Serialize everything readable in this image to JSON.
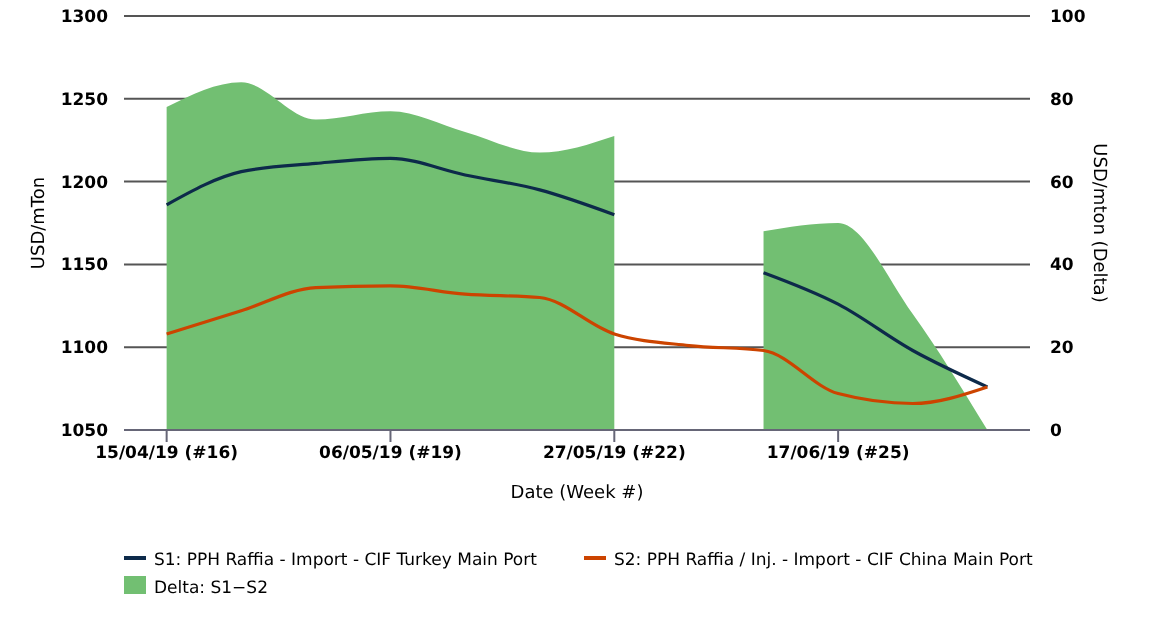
{
  "chart_data": {
    "type": "line",
    "xlabel": "Date (Week #)",
    "ylabel": "USD/mTon",
    "y2label": "USD/mton (Delta)",
    "x": [
      "2019-04-15",
      "2019-04-22",
      "2019-04-29",
      "2019-05-06",
      "2019-05-13",
      "2019-05-20",
      "2019-05-27",
      "2019-06-03",
      "2019-06-10",
      "2019-06-17",
      "2019-06-24",
      "2019-07-01"
    ],
    "series": [
      {
        "name": "Delta: S1−S2",
        "type": "area",
        "axis": "y2",
        "color": "#72bf72",
        "values": [
          78,
          84,
          75,
          77,
          72,
          67,
          71,
          null,
          48,
          50,
          28,
          0
        ]
      },
      {
        "name": "S1: PPH Raffia - Import - CIF Turkey Main Port",
        "color": "#0d2a4a",
        "values": [
          1186,
          1206,
          1211,
          1214,
          1204,
          1195,
          1180,
          null,
          1145,
          1126,
          1098,
          1076
        ]
      },
      {
        "name": "S2: PPH Raffia / Inj. - Import - CIF China Main Port",
        "color": "#cc4400",
        "values": [
          1108,
          1122,
          1136,
          1137,
          1132,
          1130,
          1108,
          1101,
          1098,
          1072,
          1066,
          1076
        ]
      }
    ],
    "xlim": [
      "2019-04-11",
      "2019-07-05"
    ],
    "xticks": [
      {
        "value": "2019-04-15",
        "label": "15/04/19 (#16)"
      },
      {
        "value": "2019-05-06",
        "label": "06/05/19 (#19)"
      },
      {
        "value": "2019-05-27",
        "label": "27/05/19 (#22)"
      },
      {
        "value": "2019-06-17",
        "label": "17/06/19 (#25)"
      }
    ],
    "ylim": [
      1050,
      1300
    ],
    "yticks": [
      1050,
      1100,
      1150,
      1200,
      1250,
      1300
    ],
    "y2lim": [
      0,
      100
    ],
    "y2ticks": [
      0,
      20,
      40,
      60,
      80,
      100
    ],
    "grid": "y",
    "legend": "bottom",
    "line_style": "solid",
    "marker": "none"
  }
}
